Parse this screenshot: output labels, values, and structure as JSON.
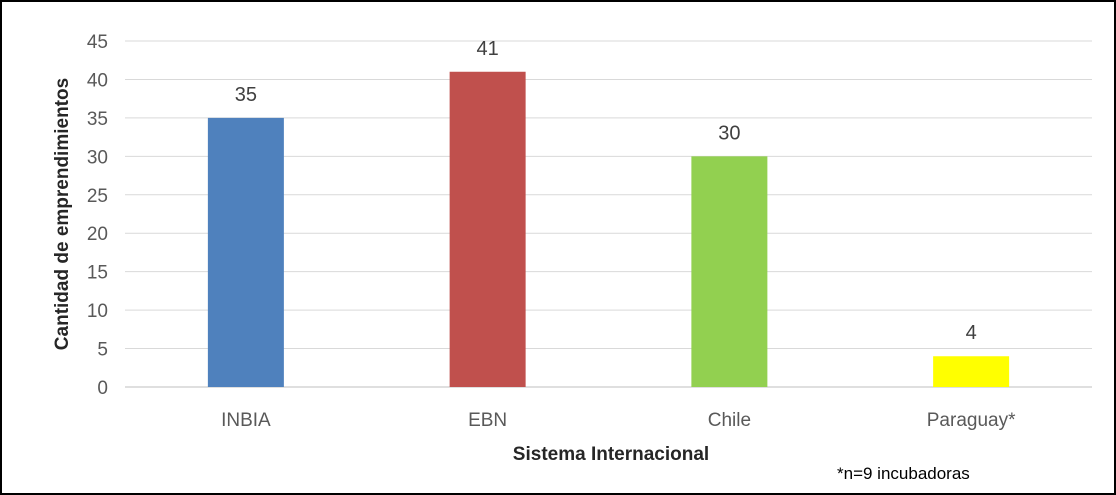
{
  "chart_data": {
    "type": "bar",
    "categories": [
      "INBIA",
      "EBN",
      "Chile",
      "Paraguay*"
    ],
    "values": [
      35,
      41,
      30,
      4
    ],
    "data_labels": [
      "35",
      "41",
      "30",
      "4"
    ],
    "colors": [
      "#4f81bd",
      "#c0504d",
      "#92d050",
      "#ffff00"
    ],
    "title": "",
    "xlabel": "Sistema Internacional",
    "ylabel": "Cantidad de emprendimientos",
    "ylim": [
      0,
      45
    ],
    "yticks": [
      0,
      5,
      10,
      15,
      20,
      25,
      30,
      35,
      40,
      45
    ],
    "grid": true,
    "legend": false,
    "note": "*n=9 incubadoras"
  }
}
